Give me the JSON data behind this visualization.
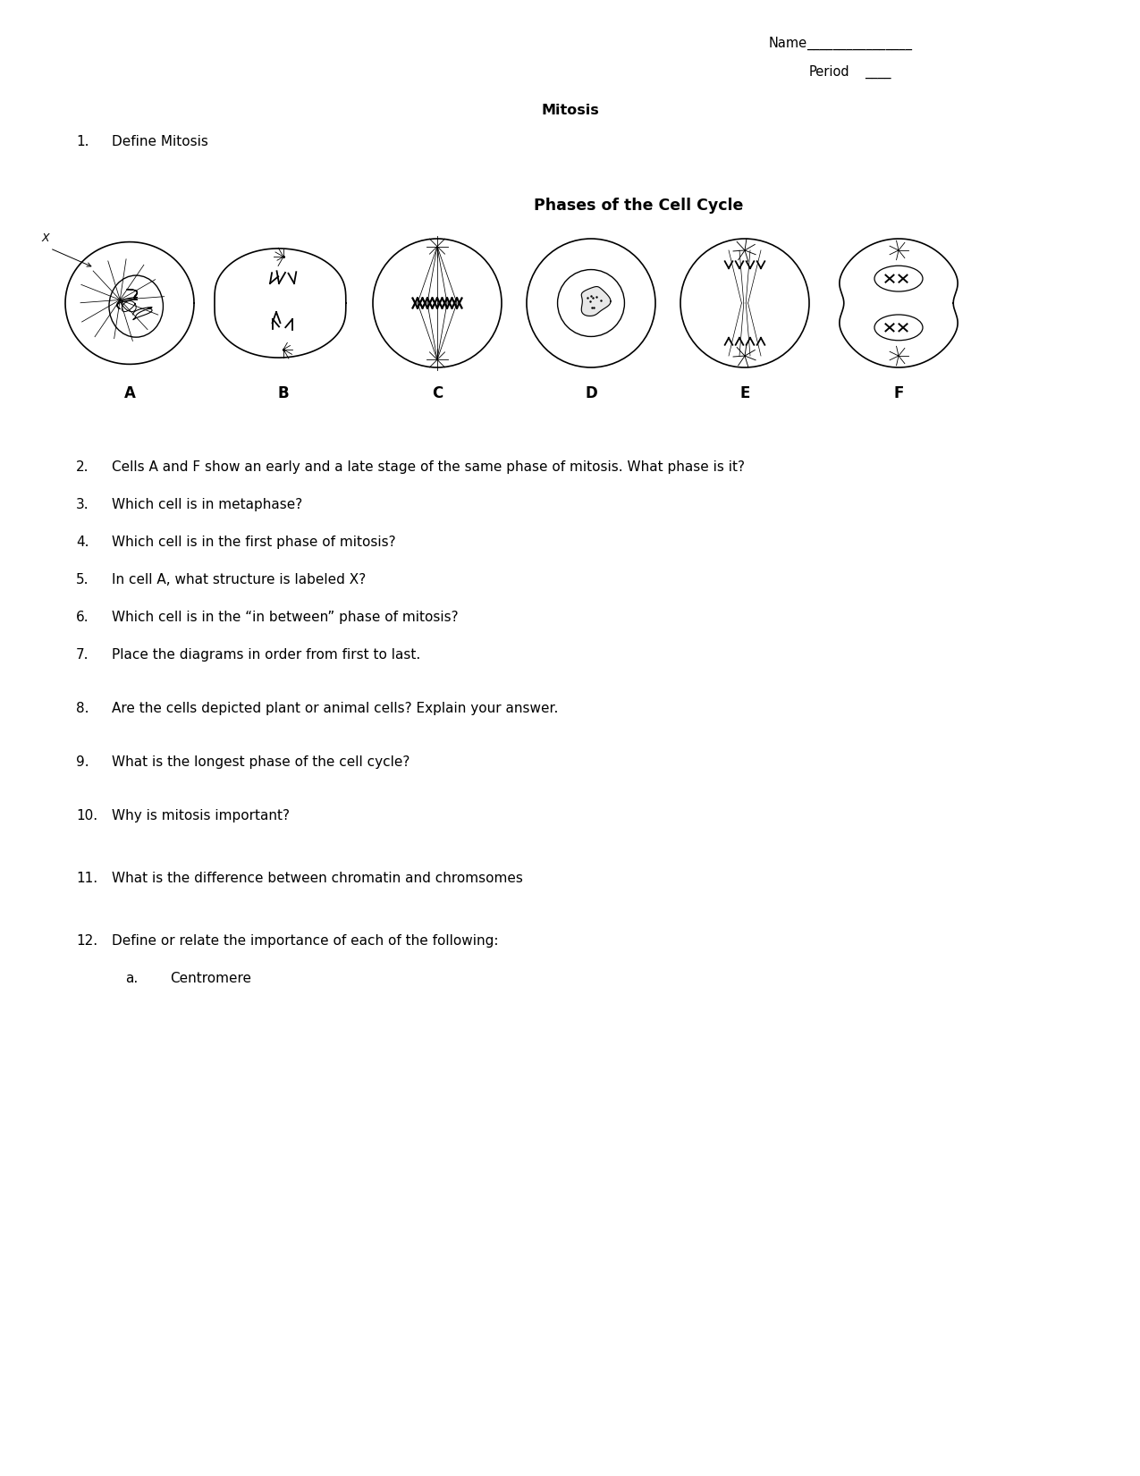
{
  "title": "Mitosis",
  "name_label": "Name",
  "name_underline": "________________",
  "period_label": "Period",
  "period_underline": "____",
  "cell_cycle_title": "Phases of the Cell Cycle",
  "cell_labels": [
    "A",
    "B",
    "C",
    "D",
    "E",
    "F"
  ],
  "q1": "Define Mitosis",
  "q2": "Cells A and F show an early and a late stage of the same phase of mitosis. What phase is it?",
  "q3": "Which cell is in metaphase?",
  "q4": "Which cell is in the first phase of mitosis?",
  "q5": "In cell A, what structure is labeled X?",
  "q6": "Which cell is in the “in between” phase of mitosis?",
  "q7": "Place the diagrams in order from first to last.",
  "q8": "Are the cells depicted plant or animal cells? Explain your answer.",
  "q9": "What is the longest phase of the cell cycle?",
  "q10": "Why is mitosis important?",
  "q11": "What is the difference between chromatin and chromsomes",
  "q12": "Define or relate the importance of each of the following:",
  "q12a": "Centromere",
  "bg_color": "#ffffff",
  "text_color": "#000000"
}
